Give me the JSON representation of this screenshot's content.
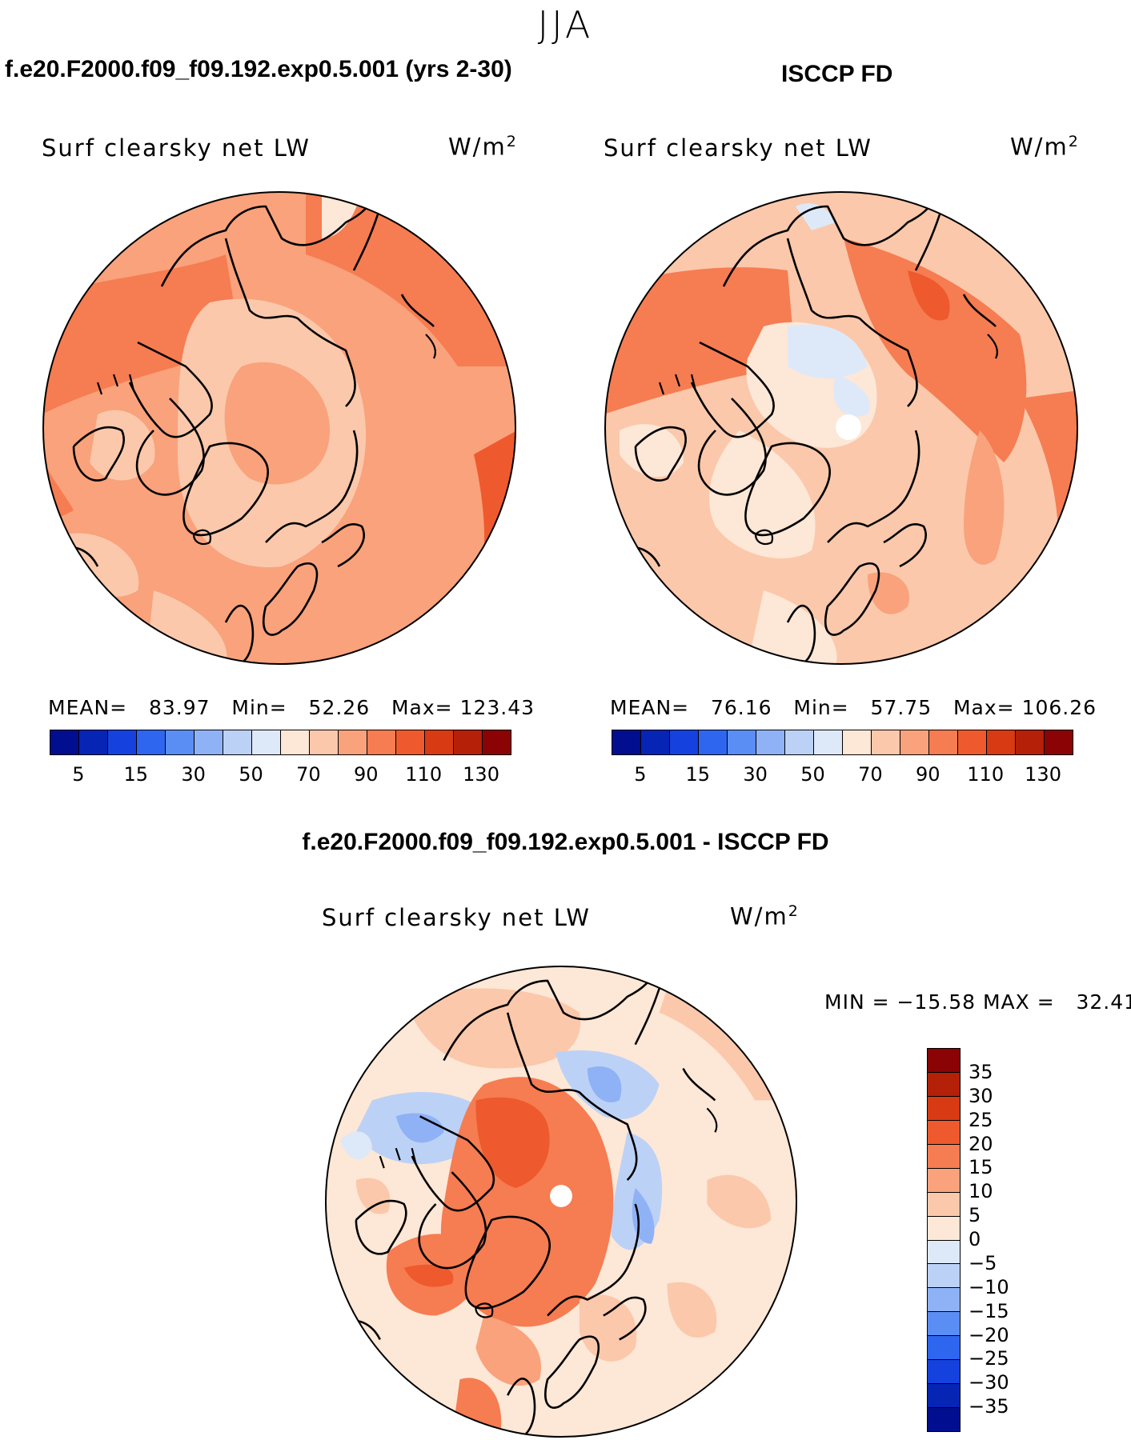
{
  "season": "JJA",
  "panels": [
    {
      "id": "model",
      "case_title": "f.e20.F2000.f09_f09.192.exp0.5.001 (yrs 2-30)",
      "variable": "Surf clearsky net LW",
      "units": "W/m",
      "units_sup": "2",
      "stats": {
        "mean_label": "MEAN=",
        "mean": "83.97",
        "min_label": "Min=",
        "min": "52.26",
        "max_label": "Max=",
        "max": "123.43"
      },
      "colorbar_ticks": [
        "5",
        "15",
        "30",
        "50",
        "70",
        "90",
        "110",
        "130"
      ]
    },
    {
      "id": "obs",
      "case_title": "ISCCP FD",
      "variable": "Surf clearsky net LW",
      "units": "W/m",
      "units_sup": "2",
      "stats": {
        "mean_label": "MEAN=",
        "mean": "76.16",
        "min_label": "Min=",
        "min": "57.75",
        "max_label": "Max=",
        "max": "106.26"
      },
      "colorbar_ticks": [
        "5",
        "15",
        "30",
        "50",
        "70",
        "90",
        "110",
        "130"
      ]
    }
  ],
  "difference": {
    "case_title": "f.e20.F2000.f09_f09.192.exp0.5.001 - ISCCP FD",
    "variable": "Surf clearsky net LW",
    "units": "W/m",
    "units_sup": "2",
    "minmax_text": "MIN = −15.58 MAX =   32.41",
    "colorbar_ticks": [
      "35",
      "30",
      "25",
      "20",
      "15",
      "10",
      "5",
      "0",
      "−5",
      "−10",
      "−15",
      "−20",
      "−25",
      "−30",
      "−35"
    ]
  },
  "colors": {
    "abs_scale": [
      "#000e8f",
      "#0625b5",
      "#1542de",
      "#2f66f0",
      "#5b8ef5",
      "#8fb2f6",
      "#bcd1f6",
      "#dde9f8",
      "#fde7d6",
      "#fbc8ab",
      "#f9a27c",
      "#f67c52",
      "#ee5a2d",
      "#d83a13",
      "#b52009",
      "#8b0304"
    ],
    "diff_scale": [
      "#8b0304",
      "#b52009",
      "#d83a13",
      "#ee5a2d",
      "#f67c52",
      "#f9a27c",
      "#fbc8ab",
      "#fde7d6",
      "#dde9f8",
      "#bcd1f6",
      "#8fb2f6",
      "#5b8ef5",
      "#2f66f0",
      "#1542de",
      "#0625b5",
      "#000e8f"
    ]
  }
}
